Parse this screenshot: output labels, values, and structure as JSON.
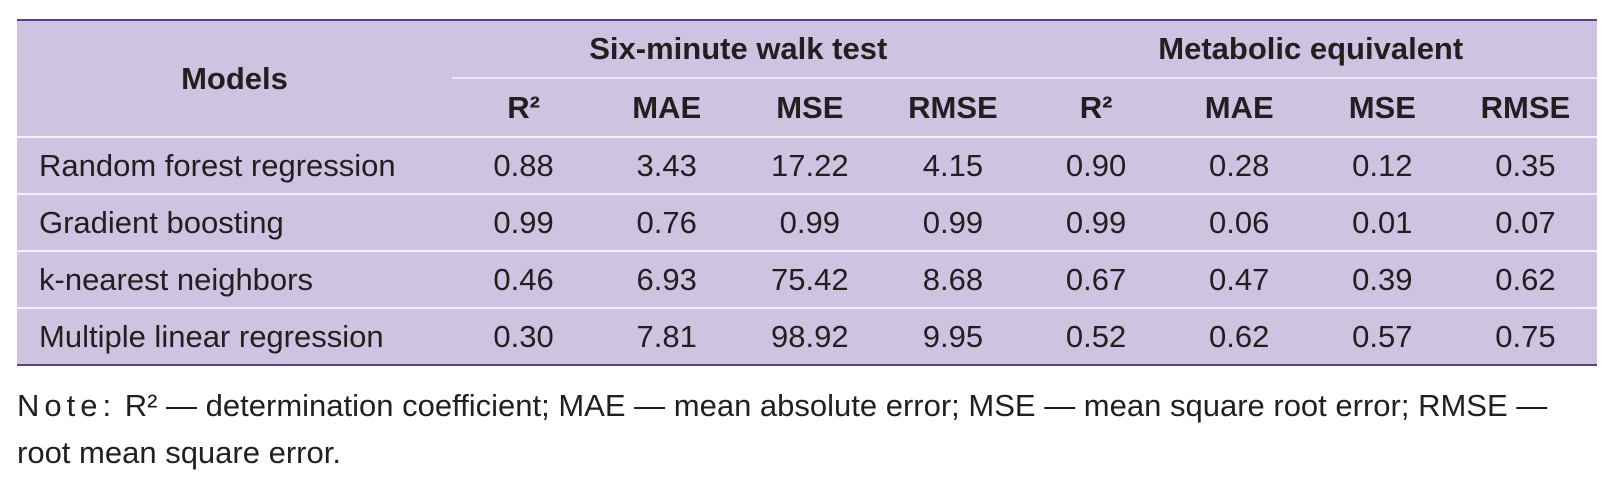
{
  "table": {
    "header": {
      "models": "Models",
      "groups": [
        "Six-minute walk test",
        "Metabolic equivalent"
      ],
      "columns": [
        "R²",
        "MAE",
        "MSE",
        "RMSE",
        "R²",
        "MAE",
        "MSE",
        "RMSE"
      ]
    },
    "rows": [
      [
        "Random forest regression",
        "0.88",
        "3.43",
        "17.22",
        "4.15",
        "0.90",
        "0.28",
        "0.12",
        "0.35"
      ],
      [
        "Gradient boosting",
        "0.99",
        "0.76",
        "0.99",
        "0.99",
        "0.99",
        "0.06",
        "0.01",
        "0.07"
      ],
      [
        "k-nearest neighbors",
        "0.46",
        "6.93",
        "75.42",
        "8.68",
        "0.67",
        "0.47",
        "0.39",
        "0.62"
      ],
      [
        "Multiple linear regression",
        "0.30",
        "7.81",
        "98.92",
        "9.95",
        "0.52",
        "0.62",
        "0.57",
        "0.75"
      ]
    ]
  },
  "note": {
    "label": "Note:",
    "text": "R² — determination coefficient; MAE — mean absolute error; MSE — mean square root error; RMSE — root mean square error."
  }
}
